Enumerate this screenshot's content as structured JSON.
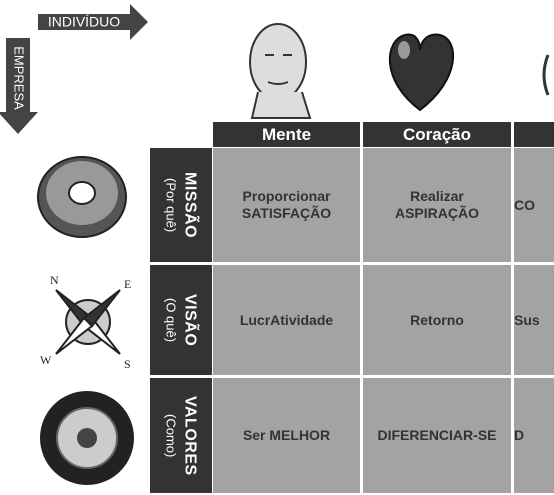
{
  "arrows": {
    "horizontal": "INDIVÍDUO",
    "vertical": "EMPRESA"
  },
  "table": {
    "columns": [
      "Mente",
      "Coração"
    ],
    "rows": [
      {
        "title": "MISSÃO",
        "subtitle": "(Por quê)",
        "cells": [
          [
            "Proporcionar",
            "SATISFAÇÃO"
          ],
          [
            "Realizar",
            "ASPIRAÇÃO"
          ],
          [
            "CO"
          ]
        ]
      },
      {
        "title": "VISÃO",
        "subtitle": "(O quê)",
        "cells": [
          [
            "LucrAtividade"
          ],
          [
            "Retorno"
          ],
          [
            "Sus"
          ]
        ]
      },
      {
        "title": "VALORES",
        "subtitle": "(Como)",
        "cells": [
          [
            "Ser MELHOR"
          ],
          [
            "DIFERENCIAR-SE"
          ],
          [
            "D"
          ]
        ]
      }
    ]
  }
}
